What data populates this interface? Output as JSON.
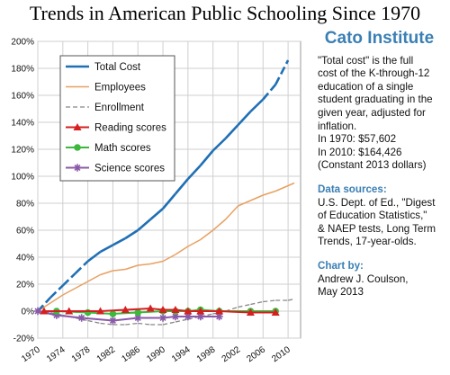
{
  "title": "Trends in American Public Schooling Since 1970",
  "sidebar": {
    "brand": "Cato Institute",
    "desc_lines": [
      "\"Total cost\" is the full",
      "cost of the K-through-12",
      "education of a single",
      "student graduating in the",
      "given year, adjusted for",
      "inflation."
    ],
    "cost_1970": "In 1970:   $57,602",
    "cost_2010": "In 2010: $164,426",
    "constant": "(Constant 2013 dollars)",
    "sources_head": "Data sources:",
    "sources_lines": [
      "U.S. Dept. of Ed., \"Digest",
      "of Education Statistics,\"",
      "& NAEP tests, Long Term",
      "Trends, 17-year-olds."
    ],
    "chart_by_head": "Chart by:",
    "chart_by_lines": [
      "Andrew J. Coulson,",
      "May 2013"
    ]
  },
  "colors": {
    "total_cost": "#1f6fb5",
    "employees": "#e8a060",
    "enrollment": "#888888",
    "reading": "#d42020",
    "math": "#3cb83c",
    "science": "#8a5aa8"
  },
  "chart_data": {
    "type": "line",
    "ylim": [
      -20,
      200
    ],
    "yticks": [
      -20,
      0,
      20,
      40,
      60,
      80,
      100,
      120,
      140,
      160,
      180,
      200
    ],
    "ytick_labels": [
      "-20%",
      "0%",
      "20%",
      "40%",
      "60%",
      "80%",
      "100%",
      "120%",
      "140%",
      "160%",
      "180%",
      "200%"
    ],
    "xlim": [
      1970,
      2012
    ],
    "xticks": [
      1970,
      1974,
      1978,
      1982,
      1986,
      1990,
      1994,
      1998,
      2002,
      2006,
      2010
    ],
    "grid": true,
    "legend_position": "top-left",
    "series": [
      {
        "name": "Total Cost",
        "key": "total_cost",
        "style": "solid",
        "marker": "none",
        "x": [
          1970,
          1972,
          1974,
          1976,
          1978,
          1980,
          1982,
          1984,
          1986,
          1988,
          1990,
          1992,
          1994,
          1996,
          1998,
          2000,
          2002,
          2004,
          2006,
          2008,
          2010
        ],
        "y": [
          0,
          10,
          19,
          28,
          37,
          44,
          49,
          54,
          60,
          68,
          76,
          87,
          98,
          108,
          119,
          128,
          138,
          148,
          157,
          168,
          186
        ],
        "dashed_x_ranges": [
          [
            1970,
            1978
          ],
          [
            2006,
            2010
          ]
        ]
      },
      {
        "name": "Employees",
        "key": "employees",
        "style": "solid",
        "marker": "none",
        "x": [
          1970,
          1972,
          1974,
          1976,
          1978,
          1980,
          1982,
          1984,
          1986,
          1988,
          1990,
          1992,
          1994,
          1996,
          1998,
          2000,
          2002,
          2004,
          2006,
          2008,
          2010,
          2011
        ],
        "y": [
          0,
          6,
          12,
          17,
          22,
          27,
          30,
          31,
          34,
          35,
          37,
          42,
          48,
          53,
          60,
          68,
          78,
          82,
          86,
          89,
          93,
          95
        ]
      },
      {
        "name": "Enrollment",
        "key": "enrollment",
        "style": "dashed",
        "marker": "none",
        "x": [
          1970,
          1972,
          1974,
          1976,
          1978,
          1980,
          1982,
          1984,
          1986,
          1988,
          1990,
          1992,
          1994,
          1996,
          1998,
          2000,
          2002,
          2004,
          2006,
          2008,
          2010,
          2011
        ],
        "y": [
          0,
          -1,
          -3,
          -5,
          -7,
          -9,
          -10,
          -10,
          -9,
          -10,
          -10,
          -8,
          -6,
          -4,
          -2,
          0,
          3,
          5,
          7,
          8,
          8,
          9
        ]
      },
      {
        "name": "Reading scores",
        "key": "reading",
        "style": "solid",
        "marker": "triangle",
        "x": [
          1971,
          1975,
          1980,
          1984,
          1988,
          1990,
          1992,
          1994,
          1996,
          1999,
          2004,
          2008
        ],
        "y": [
          0,
          0,
          0,
          1,
          2,
          1,
          1,
          0,
          0,
          0,
          -1,
          -1
        ]
      },
      {
        "name": "Math scores",
        "key": "math",
        "style": "solid",
        "marker": "circle",
        "x": [
          1973,
          1978,
          1982,
          1986,
          1990,
          1992,
          1994,
          1996,
          1999,
          2004,
          2008
        ],
        "y": [
          0,
          -1,
          -2,
          -1,
          0,
          0,
          0,
          1,
          0,
          0,
          0
        ]
      },
      {
        "name": "Science scores",
        "key": "science",
        "style": "solid",
        "marker": "star",
        "x": [
          1970,
          1973,
          1977,
          1982,
          1986,
          1990,
          1992,
          1994,
          1996,
          1999
        ],
        "y": [
          0,
          -3,
          -5,
          -7,
          -5,
          -5,
          -4,
          -4,
          -4,
          -4
        ]
      }
    ]
  }
}
